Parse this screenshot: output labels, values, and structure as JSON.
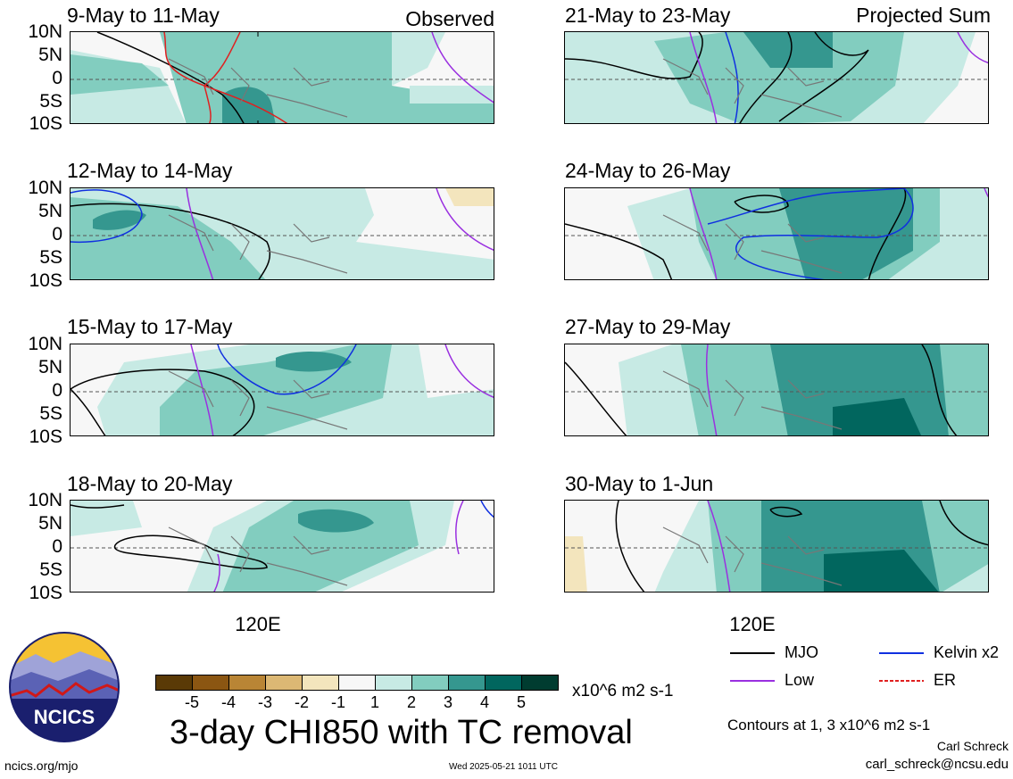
{
  "panels": [
    {
      "title": "9-May to 11-May",
      "tag": "Observed"
    },
    {
      "title": "12-May to 14-May",
      "tag": ""
    },
    {
      "title": "15-May to 17-May",
      "tag": ""
    },
    {
      "title": "18-May to 20-May",
      "tag": ""
    },
    {
      "title": "21-May to 23-May",
      "tag": "Projected Sum"
    },
    {
      "title": "24-May to 26-May",
      "tag": ""
    },
    {
      "title": "27-May to 29-May",
      "tag": ""
    },
    {
      "title": "30-May to 1-Jun",
      "tag": ""
    }
  ],
  "lat_labels": [
    "10N",
    "5N",
    "0",
    "5S",
    "10S"
  ],
  "lon_label": "120E",
  "colorbar": {
    "labels": [
      "-5",
      "-4",
      "-3",
      "-2",
      "-1",
      "1",
      "2",
      "3",
      "4",
      "5"
    ],
    "colors": [
      "#5a3a06",
      "#8b5612",
      "#b98535",
      "#dcb874",
      "#f3e5bd",
      "#f7f7f7",
      "#c7eae4",
      "#82cdbf",
      "#35978f",
      "#01665e",
      "#003c30"
    ],
    "units": "x10^6 m2 s-1"
  },
  "main_title": "3-day CHI850 with TC removal",
  "legend": [
    {
      "label": "MJO",
      "color": "#000000",
      "style": "solid"
    },
    {
      "label": "Kelvin x2",
      "color": "#1030e0",
      "style": "solid"
    },
    {
      "label": "Low",
      "color": "#9a30e0",
      "style": "solid"
    },
    {
      "label": "ER",
      "color": "#e02020",
      "style": "dashed"
    }
  ],
  "contours_note": "Contours at 1, 3 x10^6 m2 s-1",
  "author": "Carl Schreck",
  "email": "carl_schreck@ncsu.edu",
  "url": "ncics.org/mjo",
  "timestamp": "Wed 2025-05-21 1011 UTC",
  "logo_text": "NCICS"
}
